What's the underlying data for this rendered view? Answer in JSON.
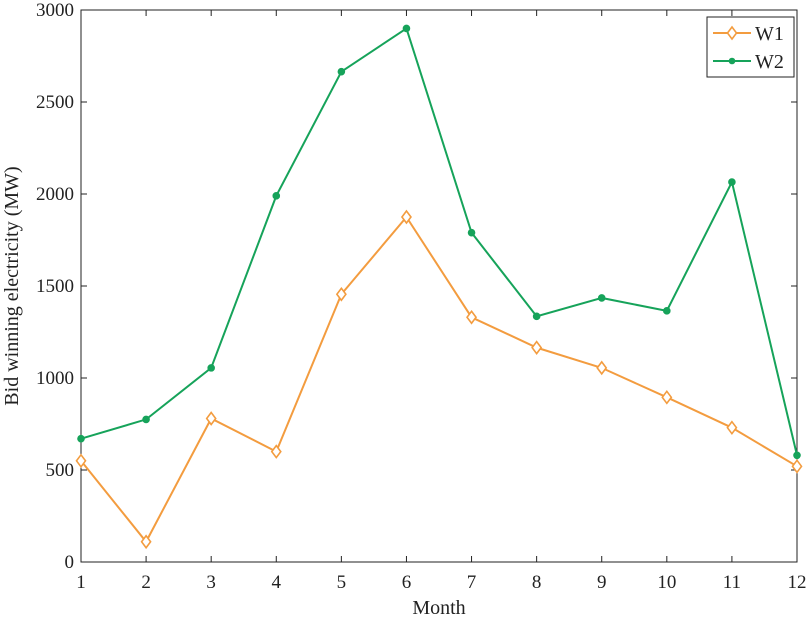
{
  "chart_data": {
    "type": "line",
    "title": "",
    "xlabel": "Month",
    "ylabel": "Bid winning electricity (MW)",
    "x": [
      1,
      2,
      3,
      4,
      5,
      6,
      7,
      8,
      9,
      10,
      11,
      12
    ],
    "xlim": [
      1,
      12
    ],
    "ylim": [
      0,
      3000
    ],
    "xticks": [
      "1",
      "2",
      "3",
      "4",
      "5",
      "6",
      "7",
      "8",
      "9",
      "10",
      "11",
      "12"
    ],
    "yticks": [
      "0",
      "500",
      "1000",
      "1500",
      "2000",
      "2500",
      "3000"
    ],
    "grid": false,
    "legend_position": "top-right",
    "series": [
      {
        "name": "W1",
        "color": "#f39c3f",
        "marker": "diamond-open",
        "values": [
          550,
          110,
          780,
          600,
          1455,
          1875,
          1330,
          1165,
          1055,
          895,
          730,
          520
        ]
      },
      {
        "name": "W2",
        "color": "#16a35a",
        "marker": "circle-filled",
        "values": [
          670,
          775,
          1055,
          1990,
          2665,
          2900,
          1790,
          1335,
          1435,
          1365,
          2065,
          580
        ]
      }
    ]
  }
}
